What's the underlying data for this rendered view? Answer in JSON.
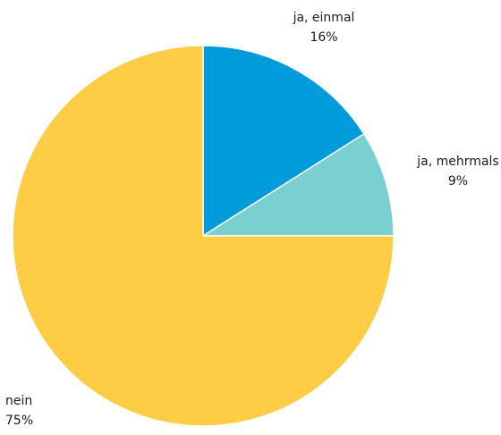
{
  "chart_data": {
    "type": "pie",
    "slices": [
      {
        "label": "ja, einmal",
        "value": 16,
        "value_label": "16%",
        "color": "#009BDB"
      },
      {
        "label": "ja, mehrmals",
        "value": 9,
        "value_label": "9%",
        "color": "#7ACFD0"
      },
      {
        "label": "nein",
        "value": 75,
        "value_label": "75%",
        "color": "#FECC45"
      }
    ],
    "start_angle": "12 o'clock",
    "direction": "clockwise",
    "legend": "none",
    "slice_border_color": "#ffffff"
  }
}
